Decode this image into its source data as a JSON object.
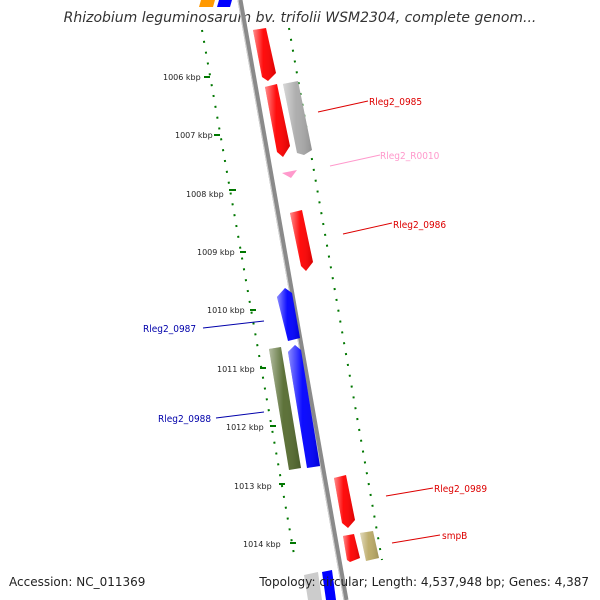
{
  "title": "Rhizobium leguminosarum bv. trifolii WSM2304, complete genom...",
  "footer": {
    "accession": "Accession: NC_011369",
    "stats": "Topology: circular; Length: 4,537,948 bp; Genes: 4,387"
  },
  "colors": {
    "cds_forward": "#ff0000",
    "cds_reverse": "#0000ff",
    "rna": "#ff99cc",
    "pseudo": "#aaaaaa",
    "other": "#556b2f",
    "tick_mark": "#007700",
    "backbone": "#888888"
  },
  "ticks": [
    "1006 kbp",
    "1007 kbp",
    "1008 kbp",
    "1009 kbp",
    "1010 kbp",
    "1011 kbp",
    "1012 kbp",
    "1013 kbp",
    "1014 kbp"
  ],
  "genes": [
    {
      "id": "Rleg2_0985",
      "color": "#dd0000"
    },
    {
      "id": "Rleg2_R0010",
      "color": "#ff99cc"
    },
    {
      "id": "Rleg2_0986",
      "color": "#dd0000"
    },
    {
      "id": "Rleg2_0987",
      "color": "#0000aa"
    },
    {
      "id": "Rleg2_0988",
      "color": "#0000aa"
    },
    {
      "id": "Rleg2_0989",
      "color": "#dd0000"
    },
    {
      "id": "smpB",
      "color": "#dd0000"
    }
  ]
}
